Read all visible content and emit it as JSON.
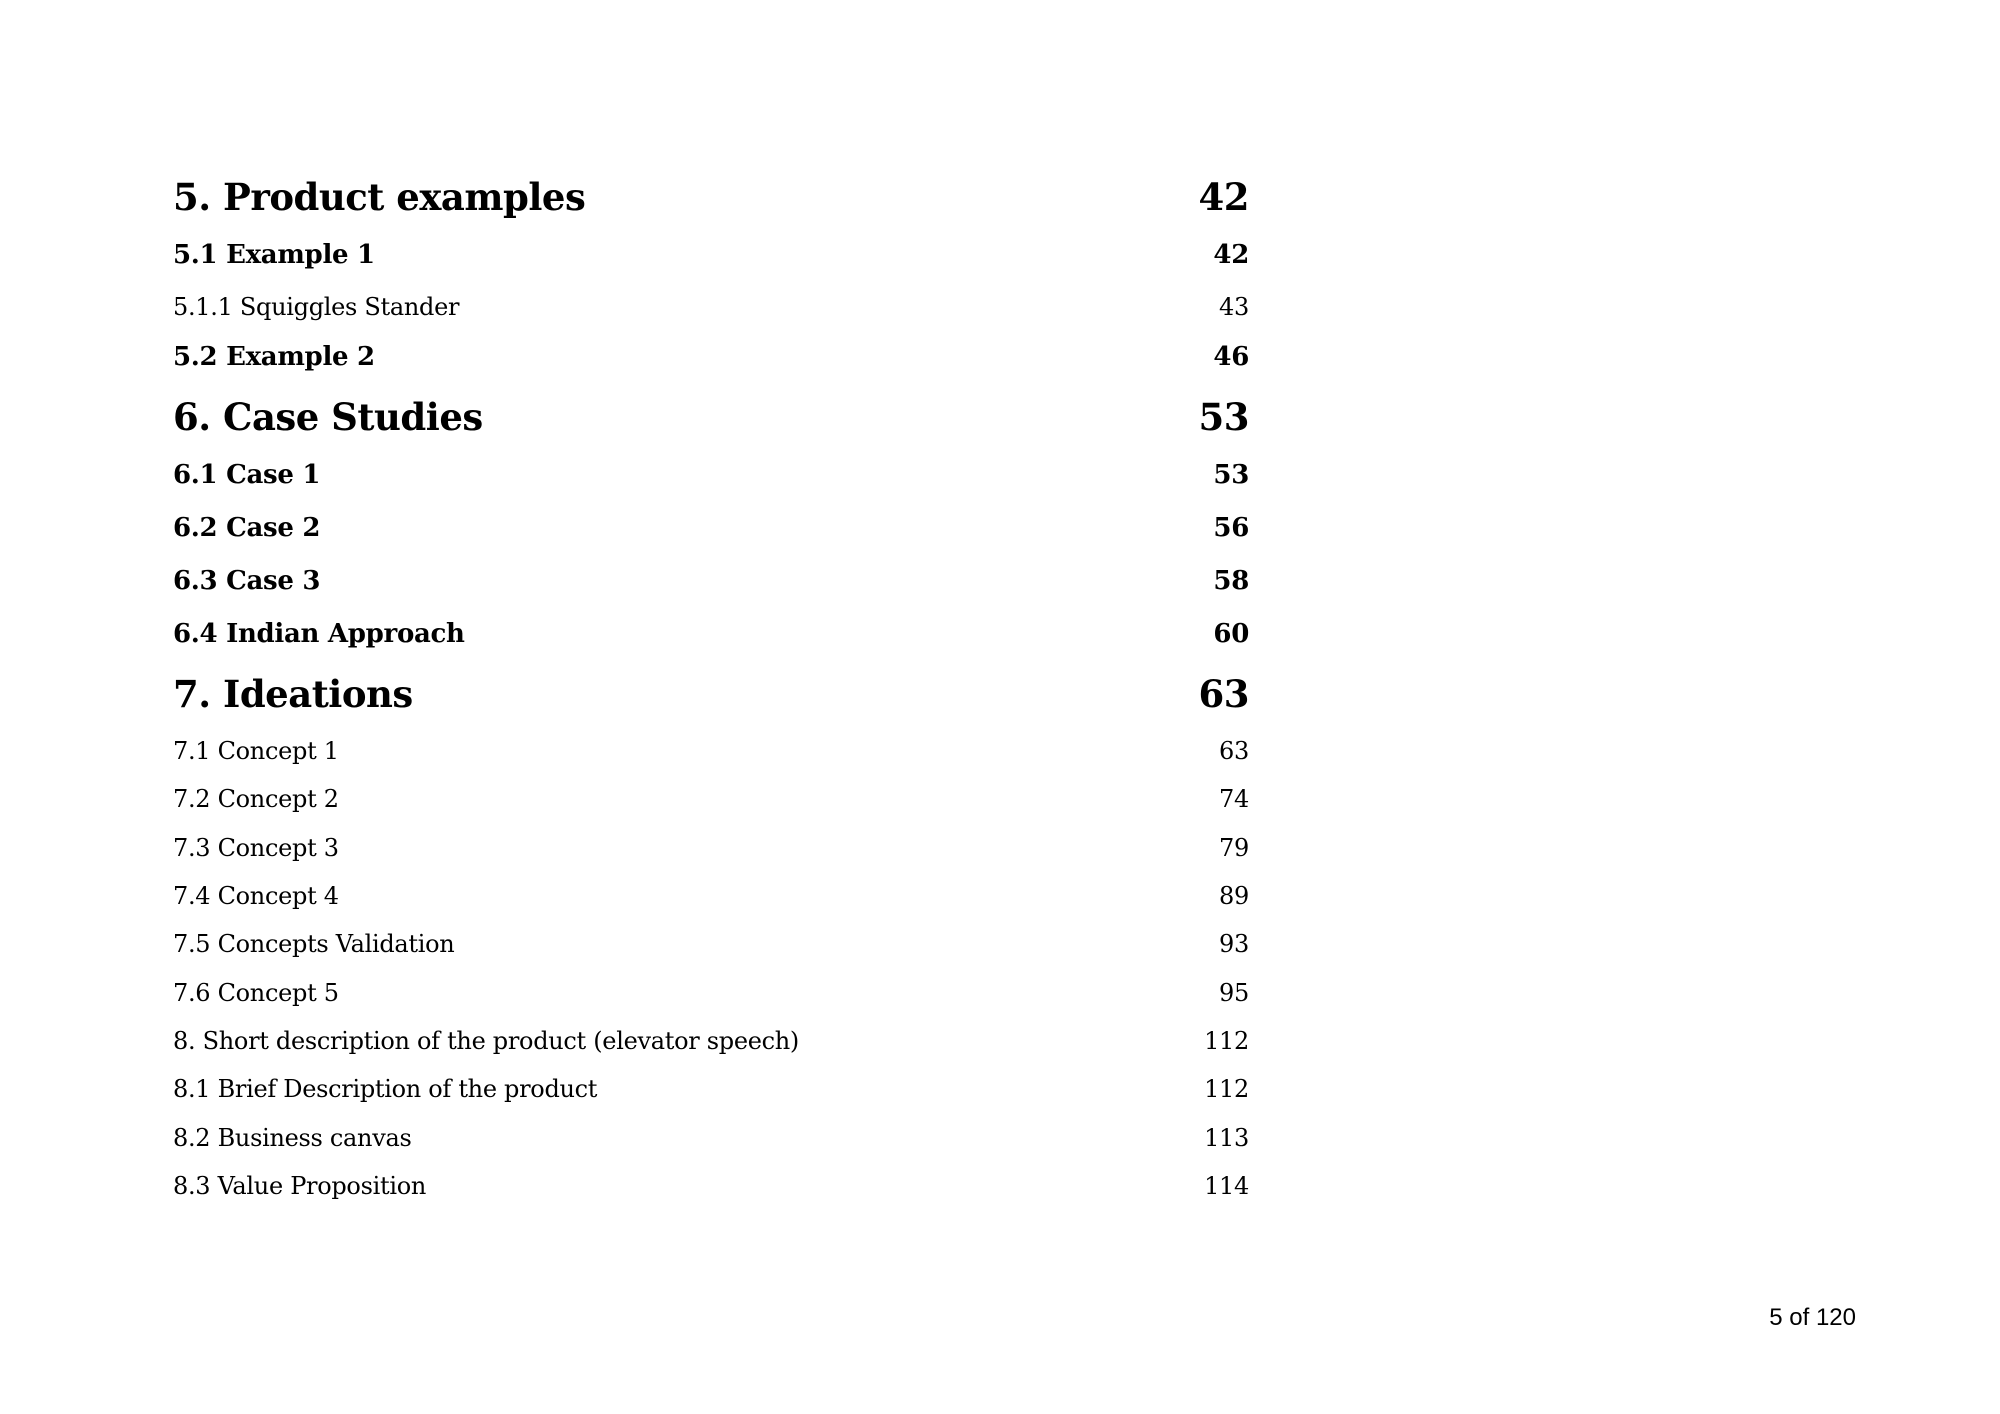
{
  "toc": [
    {
      "title": "5. Product examples",
      "page": "42",
      "level": 1
    },
    {
      "title": "5.1 Example 1",
      "page": "42",
      "level": 2
    },
    {
      "title": "5.1.1 Squiggles Stander",
      "page": "43",
      "level": 3
    },
    {
      "title": "5.2 Example 2",
      "page": "46",
      "level": 2
    },
    {
      "title": "6. Case Studies",
      "page": "53",
      "level": 1
    },
    {
      "title": "6.1 Case 1",
      "page": "53",
      "level": 2
    },
    {
      "title": "6.2 Case 2",
      "page": "56",
      "level": 2
    },
    {
      "title": "6.3 Case 3",
      "page": "58",
      "level": 2
    },
    {
      "title": "6.4 Indian Approach",
      "page": "60",
      "level": 2
    },
    {
      "title": "7. Ideations",
      "page": "63",
      "level": 1
    },
    {
      "title": "7.1 Concept 1",
      "page": "63",
      "level": 3
    },
    {
      "title": "7.2 Concept 2",
      "page": "74",
      "level": 3
    },
    {
      "title": "7.3 Concept 3",
      "page": "79",
      "level": 3
    },
    {
      "title": "7.4 Concept 4",
      "page": "89",
      "level": 3
    },
    {
      "title": "7.5 Concepts Validation",
      "page": "93",
      "level": 3
    },
    {
      "title": "7.6 Concept 5",
      "page": "95",
      "level": 3
    },
    {
      "title": "8. Short description of the product (elevator speech)",
      "page": "112",
      "level": 3
    },
    {
      "title": "8.1 Brief Description of the product",
      "page": "112",
      "level": 3
    },
    {
      "title": "8.2 Business canvas",
      "page": "113",
      "level": 3
    },
    {
      "title": "8.3 Value Proposition",
      "page": "114",
      "level": 3
    }
  ],
  "footer": {
    "page_indicator": "5 of 120"
  }
}
